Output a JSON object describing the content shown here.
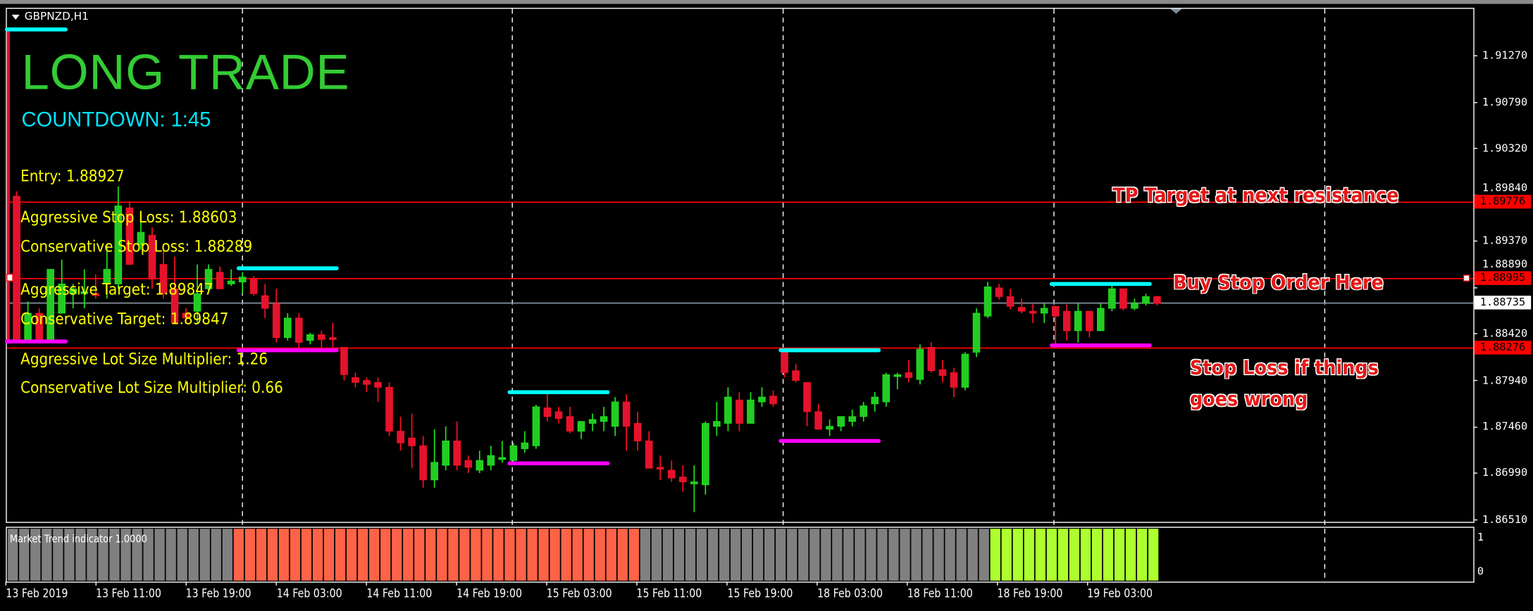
{
  "window": {
    "symbol_label": "GBPNZD,H1"
  },
  "signal": {
    "title": "LONG TRADE",
    "countdown": "COUNTDOWN: 1:45",
    "lines": [
      "Entry: 1.88927",
      "Aggressive Stop Loss: 1.88603",
      "Conservative Stop Loss: 1.88289",
      "Aggressive Target: 1.89847",
      "Conservative Target: 1.89847",
      "Aggressive Lot Size Multiplier: 1.26",
      "Conservative Lot Size Multiplier: 0.66"
    ],
    "colors": {
      "title": "#33cc33",
      "countdown": "#00e5ff",
      "lines": "#ffff00"
    }
  },
  "annotations": [
    {
      "text": "TP Target at next resistance"
    },
    {
      "text": "Buy Stop Order Here"
    },
    {
      "text": "Stop Loss if things",
      "text2": "goes wrong"
    }
  ],
  "chart_data": {
    "type": "candlestick",
    "timeframe": "H1",
    "ylim": [
      1.864,
      1.9184
    ],
    "price_ticks": [
      "1.91270",
      "1.90790",
      "1.90320",
      "1.89840",
      "1.89370",
      "1.88890",
      "1.88420",
      "1.87940",
      "1.87460",
      "1.86990",
      "1.86510"
    ],
    "time_labels": [
      "13 Feb 2019",
      "13 Feb 11:00",
      "13 Feb 19:00",
      "14 Feb 03:00",
      "14 Feb 11:00",
      "14 Feb 19:00",
      "15 Feb 03:00",
      "15 Feb 11:00",
      "15 Feb 19:00",
      "18 Feb 03:00",
      "18 Feb 11:00",
      "18 Feb 19:00",
      "19 Feb 03:00"
    ],
    "horizontal_lines": [
      {
        "price": 1.89776,
        "label": "1.89776",
        "color": "#ff0000"
      },
      {
        "price": 1.88995,
        "label": "1.88995",
        "color": "#ff0000"
      },
      {
        "price": 1.88276,
        "label": "1.88276",
        "color": "#ff0000"
      }
    ],
    "bid": {
      "price": 1.88735,
      "label": "1.88735",
      "color": "#8c9aa6"
    },
    "session_levels": [
      {
        "from_bar": -1,
        "to_bar": 4,
        "high": 1.9154,
        "low": 1.8834
      },
      {
        "from_bar": 20,
        "to_bar": 28,
        "high": 1.8909,
        "low": 1.8825
      },
      {
        "from_bar": 44,
        "to_bar": 52,
        "high": 1.8782,
        "low": 1.8709
      },
      {
        "from_bar": 68,
        "to_bar": 76,
        "high": 1.8825,
        "low": 1.8732
      },
      {
        "from_bar": 92,
        "to_bar": 100,
        "high": 1.8893,
        "low": 1.883
      }
    ],
    "colors": {
      "up": "#22cc22",
      "down": "#e3132f",
      "high_level": "#00ffff",
      "low_level": "#ff00ff"
    },
    "ohlc": [
      [
        1.8983,
        1.8988,
        1.8835,
        1.8836
      ],
      [
        1.8836,
        1.8875,
        1.8835,
        1.8863
      ],
      [
        1.8863,
        1.8868,
        1.8836,
        1.8836
      ],
      [
        1.8836,
        1.8908,
        1.8836,
        1.8908
      ],
      [
        1.8863,
        1.8918,
        1.8863,
        1.8893
      ],
      [
        1.8883,
        1.8893,
        1.8868,
        1.8888
      ],
      [
        1.8883,
        1.8908,
        1.8868,
        1.8885
      ],
      [
        1.8883,
        1.8903,
        1.8878,
        1.8881
      ],
      [
        1.8893,
        1.8933,
        1.8878,
        1.8908
      ],
      [
        1.8893,
        1.8993,
        1.8888,
        1.8973
      ],
      [
        1.8971,
        1.8978,
        1.8913,
        1.8913
      ],
      [
        1.8933,
        1.8966,
        1.8928,
        1.8946
      ],
      [
        1.8943,
        1.8951,
        1.8888,
        1.8898
      ],
      [
        1.8913,
        1.8928,
        1.8878,
        1.8883
      ],
      [
        1.8888,
        1.8921,
        1.8853,
        1.8853
      ],
      [
        1.8863,
        1.8868,
        1.8853,
        1.8858
      ],
      [
        1.8865,
        1.8913,
        1.8853,
        1.8883
      ],
      [
        1.8888,
        1.8913,
        1.8885,
        1.8908
      ],
      [
        1.8905,
        1.8911,
        1.8888,
        1.8888
      ],
      [
        1.8893,
        1.8908,
        1.8891,
        1.8896
      ],
      [
        1.8895,
        1.8905,
        1.8883,
        1.89
      ],
      [
        1.8898,
        1.8901,
        1.8881,
        1.8883
      ],
      [
        1.8881,
        1.8893,
        1.8858,
        1.8868
      ],
      [
        1.8873,
        1.8888,
        1.8833,
        1.8838
      ],
      [
        1.8838,
        1.8863,
        1.8835,
        1.8858
      ],
      [
        1.8858,
        1.8863,
        1.8825,
        1.8833
      ],
      [
        1.8835,
        1.8843,
        1.8831,
        1.8841
      ],
      [
        1.8841,
        1.8845,
        1.8828,
        1.8836
      ],
      [
        1.8838,
        1.8853,
        1.8828,
        1.8837
      ],
      [
        1.8828,
        1.8828,
        1.8794,
        1.88
      ],
      [
        1.8797,
        1.8802,
        1.8787,
        1.8792
      ],
      [
        1.8794,
        1.8797,
        1.8782,
        1.879
      ],
      [
        1.8792,
        1.8797,
        1.8772,
        1.8787
      ],
      [
        1.8787,
        1.8792,
        1.8737,
        1.8742
      ],
      [
        1.8742,
        1.8757,
        1.8722,
        1.873
      ],
      [
        1.8735,
        1.876,
        1.8704,
        1.8727
      ],
      [
        1.8727,
        1.8737,
        1.8684,
        1.8692
      ],
      [
        1.8692,
        1.8744,
        1.8684,
        1.871
      ],
      [
        1.8707,
        1.8747,
        1.8702,
        1.8732
      ],
      [
        1.8732,
        1.8752,
        1.8702,
        1.8707
      ],
      [
        1.8712,
        1.8717,
        1.8699,
        1.8705
      ],
      [
        1.8702,
        1.8722,
        1.8699,
        1.8712
      ],
      [
        1.8707,
        1.8727,
        1.8702,
        1.8717
      ],
      [
        1.8714,
        1.8732,
        1.871,
        1.8715
      ],
      [
        1.8712,
        1.873,
        1.8707,
        1.8727
      ],
      [
        1.8724,
        1.8742,
        1.872,
        1.873
      ],
      [
        1.8727,
        1.8769,
        1.8724,
        1.8767
      ],
      [
        1.8766,
        1.8782,
        1.8752,
        1.8757
      ],
      [
        1.8762,
        1.8767,
        1.875,
        1.8755
      ],
      [
        1.8757,
        1.8767,
        1.874,
        1.8742
      ],
      [
        1.8742,
        1.8752,
        1.8734,
        1.8752
      ],
      [
        1.875,
        1.876,
        1.8742,
        1.8754
      ],
      [
        1.8752,
        1.8767,
        1.8742,
        1.8757
      ],
      [
        1.8747,
        1.8777,
        1.8737,
        1.8772
      ],
      [
        1.8772,
        1.878,
        1.8722,
        1.8747
      ],
      [
        1.875,
        1.8762,
        1.8722,
        1.8732
      ],
      [
        1.8732,
        1.8742,
        1.8704,
        1.8704
      ],
      [
        1.8705,
        1.8717,
        1.8692,
        1.8703
      ],
      [
        1.8702,
        1.8712,
        1.869,
        1.8694
      ],
      [
        1.8695,
        1.8707,
        1.868,
        1.869
      ],
      [
        1.869,
        1.8707,
        1.8659,
        1.869
      ],
      [
        1.8687,
        1.8752,
        1.8677,
        1.875
      ],
      [
        1.8747,
        1.8772,
        1.8737,
        1.8752
      ],
      [
        1.875,
        1.8787,
        1.8742,
        1.8777
      ],
      [
        1.8774,
        1.8782,
        1.8742,
        1.875
      ],
      [
        1.875,
        1.8782,
        1.875,
        1.8774
      ],
      [
        1.8772,
        1.8787,
        1.8767,
        1.8777
      ],
      [
        1.8778,
        1.8784,
        1.8767,
        1.877
      ],
      [
        1.8825,
        1.8828,
        1.8797,
        1.8802
      ],
      [
        1.8804,
        1.8811,
        1.8792,
        1.8794
      ],
      [
        1.8792,
        1.8792,
        1.8747,
        1.8762
      ],
      [
        1.8762,
        1.877,
        1.8744,
        1.8744
      ],
      [
        1.8744,
        1.8754,
        1.8737,
        1.8747
      ],
      [
        1.8747,
        1.8757,
        1.8742,
        1.8757
      ],
      [
        1.8752,
        1.8764,
        1.8747,
        1.8757
      ],
      [
        1.8757,
        1.8772,
        1.8752,
        1.8768
      ],
      [
        1.877,
        1.8782,
        1.8762,
        1.8777
      ],
      [
        1.8772,
        1.8802,
        1.8767,
        1.88
      ],
      [
        1.8799,
        1.8802,
        1.8785,
        1.88
      ],
      [
        1.8802,
        1.8815,
        1.8792,
        1.8797
      ],
      [
        1.8795,
        1.8831,
        1.879,
        1.8826
      ],
      [
        1.8828,
        1.8833,
        1.8802,
        1.8804
      ],
      [
        1.8805,
        1.8815,
        1.8792,
        1.8799
      ],
      [
        1.8802,
        1.8807,
        1.8777,
        1.8787
      ],
      [
        1.8787,
        1.8823,
        1.8784,
        1.8821
      ],
      [
        1.8823,
        1.8868,
        1.8818,
        1.8863
      ],
      [
        1.886,
        1.8895,
        1.8858,
        1.889
      ],
      [
        1.8889,
        1.8893,
        1.8877,
        1.888
      ],
      [
        1.888,
        1.8888,
        1.8867,
        1.887
      ],
      [
        1.8869,
        1.8878,
        1.8863,
        1.8865
      ],
      [
        1.8865,
        1.8873,
        1.8853,
        1.8863
      ],
      [
        1.8863,
        1.8873,
        1.8853,
        1.8868
      ],
      [
        1.887,
        1.887,
        1.8828,
        1.886
      ],
      [
        1.8865,
        1.8872,
        1.8835,
        1.8845
      ],
      [
        1.8845,
        1.8873,
        1.8833,
        1.8865
      ],
      [
        1.8865,
        1.8865,
        1.8838,
        1.8845
      ],
      [
        1.8845,
        1.8873,
        1.8845,
        1.8868
      ],
      [
        1.8868,
        1.8891,
        1.8865,
        1.8888
      ],
      [
        1.8888,
        1.8888,
        1.8866,
        1.8868
      ],
      [
        1.8868,
        1.8878,
        1.8866,
        1.8873
      ],
      [
        1.8873,
        1.8883,
        1.8871,
        1.888
      ],
      [
        1.888,
        1.8881,
        1.8871,
        1.8873
      ]
    ]
  },
  "indicator": {
    "label": "Market Trend indicator 1.0000",
    "scale_labels": [
      "1",
      "0"
    ],
    "segments": [
      {
        "state": "neutral",
        "count": 20,
        "color": "#808080"
      },
      {
        "state": "bearish",
        "count": 36,
        "color": "#ff6347"
      },
      {
        "state": "neutral",
        "count": 31,
        "color": "#808080"
      },
      {
        "state": "bullish",
        "count": 15,
        "color": "#adff2f"
      }
    ]
  }
}
